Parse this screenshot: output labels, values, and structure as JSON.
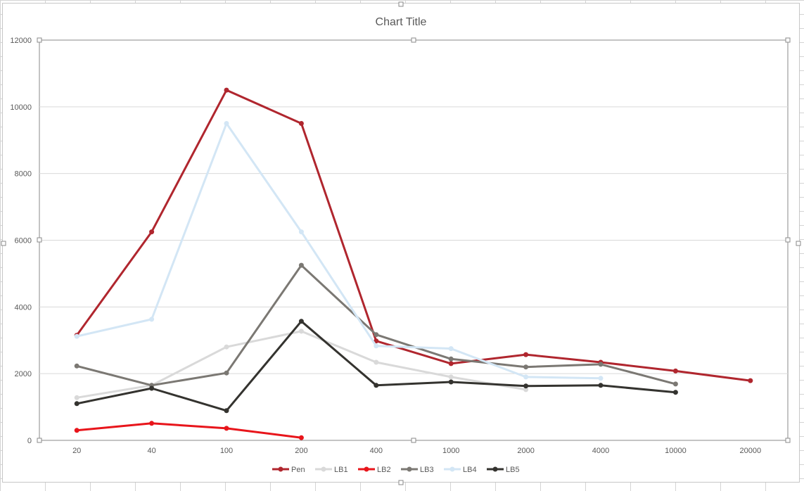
{
  "chart_data": {
    "type": "line",
    "title": "Chart Title",
    "xlabel": "",
    "ylabel": "",
    "categories": [
      "20",
      "40",
      "100",
      "200",
      "400",
      "1000",
      "2000",
      "4000",
      "10000",
      "20000"
    ],
    "ylim": [
      0,
      12000
    ],
    "yticks": [
      0,
      2000,
      4000,
      6000,
      8000,
      10000,
      12000
    ],
    "grid": true,
    "legend_position": "bottom",
    "series": [
      {
        "name": "Pen",
        "color": "#b0262e",
        "values": [
          3150,
          6250,
          10500,
          9500,
          2980,
          2300,
          2570,
          2340,
          2080,
          1790
        ]
      },
      {
        "name": "LB1",
        "color": "#d9d9d9",
        "values": [
          1280,
          1650,
          2800,
          3270,
          2340,
          1900,
          1520,
          null,
          null,
          null
        ]
      },
      {
        "name": "LB2",
        "color": "#e8151b",
        "values": [
          300,
          510,
          360,
          80,
          null,
          null,
          null,
          null,
          null,
          null
        ]
      },
      {
        "name": "LB3",
        "color": "#7b7873",
        "values": [
          2230,
          1650,
          2020,
          5250,
          3170,
          2440,
          2200,
          2280,
          1690,
          null
        ]
      },
      {
        "name": "LB4",
        "color": "#d3e6f5",
        "values": [
          3120,
          3630,
          9500,
          6250,
          2830,
          2750,
          1900,
          1860,
          null,
          null
        ]
      },
      {
        "name": "LB5",
        "color": "#34332f",
        "values": [
          1100,
          1560,
          890,
          3570,
          1650,
          1750,
          1630,
          1650,
          1440,
          null
        ]
      }
    ]
  }
}
